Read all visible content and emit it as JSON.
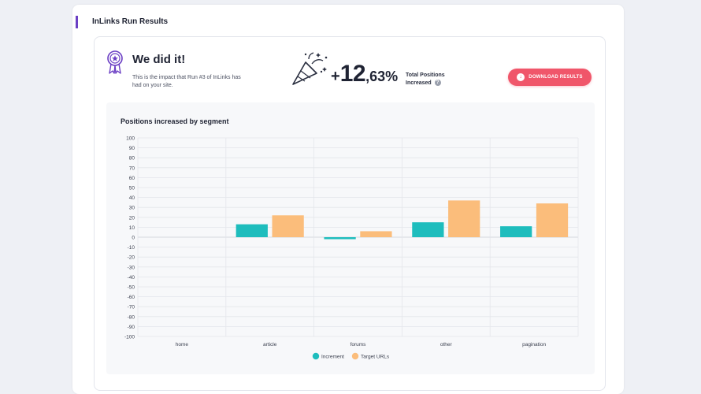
{
  "section": {
    "title": "InLinks Run Results"
  },
  "summary": {
    "title": "We did it!",
    "description": "This is the impact that Run #3 of InLinks has had on your site.",
    "metric_sign": "+",
    "metric_integer": "12",
    "metric_decimal": ",63%",
    "metric_label": "Total Positions Increased",
    "help_icon": "?",
    "download_label": "DOWNLOAD RESULTS"
  },
  "colors": {
    "accent": "#6b3fc4",
    "button": "#f0566a",
    "increment": "#1ebdbd",
    "target": "#fbbd7b"
  },
  "chart_data": {
    "type": "bar",
    "title": "Positions increased by segment",
    "categories": [
      "home",
      "article",
      "forums",
      "other",
      "pagination"
    ],
    "series": [
      {
        "name": "Increment",
        "values": [
          0,
          13,
          -2,
          15,
          11
        ]
      },
      {
        "name": "Target URLs",
        "values": [
          0,
          22,
          6,
          37,
          34
        ]
      }
    ],
    "ylim": [
      -100,
      100
    ],
    "yticks": [
      100,
      90,
      80,
      70,
      60,
      50,
      40,
      30,
      20,
      10,
      0,
      -10,
      -20,
      -30,
      -40,
      -50,
      -60,
      -70,
      -80,
      -90,
      -100
    ],
    "xlabel": "",
    "ylabel": "",
    "grid": true,
    "legend": "bottom"
  }
}
